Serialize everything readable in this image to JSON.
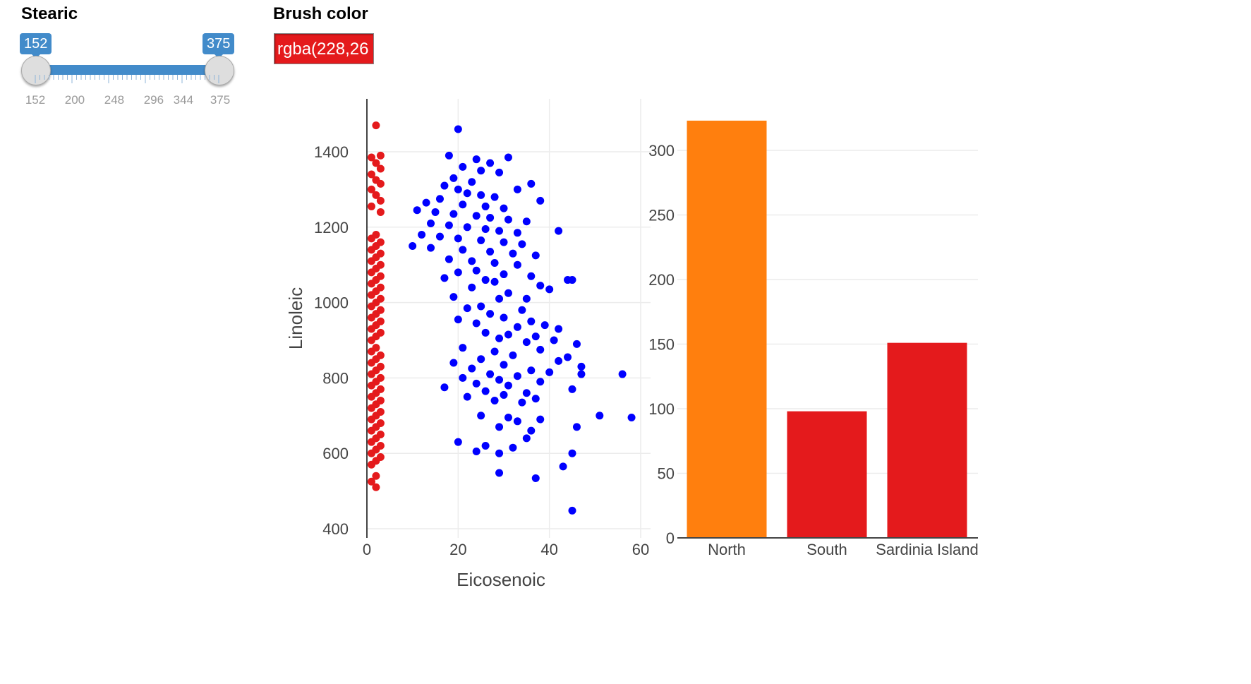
{
  "controls": {
    "stearic": {
      "label": "Stearic",
      "min": 152,
      "max": 375,
      "low": 152,
      "high": 375,
      "low_label": "152",
      "high_label": "375",
      "tick_labels": [
        "152",
        "200",
        "248",
        "296",
        "344",
        "375"
      ]
    },
    "brush": {
      "label": "Brush color",
      "value": "rgba(228,26",
      "color": "#e41a1c"
    }
  },
  "colors": {
    "brushed": "#e41a1c",
    "unbrushed": "#0000ff",
    "bar_highlight": "#ff7f0e",
    "bar_default": "#e41a1c",
    "slider_accent": "#428bca"
  },
  "chart_data": [
    {
      "type": "scatter",
      "xlabel": "Eicosenoic",
      "ylabel": "Linoleic",
      "xlim": [
        0,
        60
      ],
      "ylim": [
        400,
        1500
      ],
      "xticks": [
        "0",
        "20",
        "40",
        "60"
      ],
      "yticks": [
        "400",
        "600",
        "800",
        "1000",
        "1200",
        "1400"
      ],
      "grid": true,
      "series": [
        {
          "color": "#e41a1c",
          "points": [
            [
              2,
              1470
            ],
            [
              1,
              1385
            ],
            [
              3,
              1390
            ],
            [
              2,
              1370
            ],
            [
              3,
              1355
            ],
            [
              1,
              1340
            ],
            [
              2,
              1325
            ],
            [
              3,
              1315
            ],
            [
              1,
              1300
            ],
            [
              2,
              1285
            ],
            [
              3,
              1270
            ],
            [
              1,
              1255
            ],
            [
              3,
              1240
            ],
            [
              2,
              1180
            ],
            [
              1,
              1170
            ],
            [
              3,
              1160
            ],
            [
              2,
              1150
            ],
            [
              1,
              1140
            ],
            [
              3,
              1130
            ],
            [
              2,
              1120
            ],
            [
              1,
              1110
            ],
            [
              3,
              1100
            ],
            [
              2,
              1090
            ],
            [
              1,
              1080
            ],
            [
              3,
              1070
            ],
            [
              2,
              1060
            ],
            [
              1,
              1050
            ],
            [
              3,
              1040
            ],
            [
              2,
              1030
            ],
            [
              1,
              1020
            ],
            [
              3,
              1010
            ],
            [
              2,
              1000
            ],
            [
              1,
              990
            ],
            [
              3,
              980
            ],
            [
              2,
              970
            ],
            [
              1,
              960
            ],
            [
              3,
              950
            ],
            [
              2,
              940
            ],
            [
              1,
              930
            ],
            [
              3,
              920
            ],
            [
              2,
              910
            ],
            [
              1,
              900
            ],
            [
              2,
              880
            ],
            [
              1,
              870
            ],
            [
              3,
              860
            ],
            [
              2,
              850
            ],
            [
              1,
              840
            ],
            [
              3,
              830
            ],
            [
              2,
              820
            ],
            [
              1,
              810
            ],
            [
              3,
              800
            ],
            [
              2,
              790
            ],
            [
              1,
              780
            ],
            [
              3,
              770
            ],
            [
              2,
              760
            ],
            [
              1,
              750
            ],
            [
              3,
              740
            ],
            [
              2,
              730
            ],
            [
              1,
              720
            ],
            [
              3,
              710
            ],
            [
              2,
              700
            ],
            [
              1,
              690
            ],
            [
              3,
              680
            ],
            [
              2,
              670
            ],
            [
              1,
              660
            ],
            [
              3,
              650
            ],
            [
              2,
              640
            ],
            [
              1,
              630
            ],
            [
              3,
              620
            ],
            [
              2,
              610
            ],
            [
              1,
              600
            ],
            [
              3,
              590
            ],
            [
              2,
              580
            ],
            [
              1,
              570
            ],
            [
              2,
              540
            ],
            [
              1,
              525
            ],
            [
              2,
              510
            ]
          ]
        },
        {
          "color": "#0000ff",
          "points": [
            [
              20,
              1460
            ],
            [
              18,
              1390
            ],
            [
              24,
              1380
            ],
            [
              31,
              1385
            ],
            [
              27,
              1370
            ],
            [
              21,
              1360
            ],
            [
              25,
              1350
            ],
            [
              29,
              1345
            ],
            [
              19,
              1330
            ],
            [
              23,
              1320
            ],
            [
              36,
              1315
            ],
            [
              17,
              1310
            ],
            [
              20,
              1300
            ],
            [
              33,
              1300
            ],
            [
              22,
              1290
            ],
            [
              25,
              1285
            ],
            [
              28,
              1280
            ],
            [
              16,
              1275
            ],
            [
              38,
              1270
            ],
            [
              13,
              1265
            ],
            [
              21,
              1260
            ],
            [
              26,
              1255
            ],
            [
              30,
              1250
            ],
            [
              11,
              1245
            ],
            [
              15,
              1240
            ],
            [
              19,
              1235
            ],
            [
              24,
              1230
            ],
            [
              27,
              1225
            ],
            [
              31,
              1220
            ],
            [
              35,
              1215
            ],
            [
              14,
              1210
            ],
            [
              18,
              1205
            ],
            [
              22,
              1200
            ],
            [
              26,
              1195
            ],
            [
              29,
              1190
            ],
            [
              33,
              1185
            ],
            [
              42,
              1190
            ],
            [
              12,
              1180
            ],
            [
              16,
              1175
            ],
            [
              20,
              1170
            ],
            [
              25,
              1165
            ],
            [
              30,
              1160
            ],
            [
              34,
              1155
            ],
            [
              10,
              1150
            ],
            [
              14,
              1145
            ],
            [
              21,
              1140
            ],
            [
              27,
              1135
            ],
            [
              32,
              1130
            ],
            [
              37,
              1125
            ],
            [
              18,
              1115
            ],
            [
              23,
              1110
            ],
            [
              28,
              1105
            ],
            [
              33,
              1100
            ],
            [
              24,
              1085
            ],
            [
              20,
              1080
            ],
            [
              30,
              1075
            ],
            [
              36,
              1070
            ],
            [
              17,
              1065
            ],
            [
              26,
              1060
            ],
            [
              44,
              1060
            ],
            [
              45,
              1060
            ],
            [
              28,
              1055
            ],
            [
              38,
              1045
            ],
            [
              23,
              1040
            ],
            [
              40,
              1035
            ],
            [
              31,
              1025
            ],
            [
              35,
              1010
            ],
            [
              19,
              1015
            ],
            [
              29,
              1010
            ],
            [
              25,
              990
            ],
            [
              22,
              985
            ],
            [
              34,
              980
            ],
            [
              27,
              970
            ],
            [
              30,
              960
            ],
            [
              20,
              955
            ],
            [
              36,
              950
            ],
            [
              24,
              945
            ],
            [
              39,
              940
            ],
            [
              33,
              935
            ],
            [
              42,
              930
            ],
            [
              26,
              920
            ],
            [
              31,
              915
            ],
            [
              37,
              910
            ],
            [
              29,
              905
            ],
            [
              41,
              900
            ],
            [
              35,
              895
            ],
            [
              46,
              890
            ],
            [
              21,
              880
            ],
            [
              38,
              875
            ],
            [
              28,
              870
            ],
            [
              32,
              860
            ],
            [
              44,
              855
            ],
            [
              25,
              850
            ],
            [
              42,
              845
            ],
            [
              19,
              840
            ],
            [
              30,
              835
            ],
            [
              47,
              830
            ],
            [
              23,
              825
            ],
            [
              36,
              820
            ],
            [
              40,
              815
            ],
            [
              27,
              810
            ],
            [
              33,
              805
            ],
            [
              47,
              810
            ],
            [
              21,
              800
            ],
            [
              56,
              810
            ],
            [
              29,
              795
            ],
            [
              38,
              790
            ],
            [
              24,
              785
            ],
            [
              31,
              780
            ],
            [
              17,
              775
            ],
            [
              45,
              770
            ],
            [
              26,
              765
            ],
            [
              35,
              760
            ],
            [
              30,
              755
            ],
            [
              22,
              750
            ],
            [
              37,
              745
            ],
            [
              28,
              740
            ],
            [
              34,
              735
            ],
            [
              25,
              700
            ],
            [
              31,
              695
            ],
            [
              38,
              690
            ],
            [
              33,
              685
            ],
            [
              46,
              670
            ],
            [
              29,
              670
            ],
            [
              36,
              660
            ],
            [
              58,
              695
            ],
            [
              51,
              700
            ],
            [
              20,
              630
            ],
            [
              26,
              620
            ],
            [
              32,
              615
            ],
            [
              24,
              605
            ],
            [
              29,
              600
            ],
            [
              45,
              600
            ],
            [
              35,
              640
            ],
            [
              43,
              565
            ],
            [
              29,
              548
            ],
            [
              37,
              534
            ],
            [
              45,
              448
            ]
          ]
        }
      ]
    },
    {
      "type": "bar",
      "categories": [
        "North",
        "South",
        "Sardinia Island"
      ],
      "values": [
        323,
        98,
        151
      ],
      "ylim": [
        0,
        325
      ],
      "yticks": [
        "0",
        "50",
        "100",
        "150",
        "200",
        "250",
        "300"
      ],
      "bar_colors": [
        "#ff7f0e",
        "#e41a1c",
        "#e41a1c"
      ],
      "grid": true
    }
  ]
}
